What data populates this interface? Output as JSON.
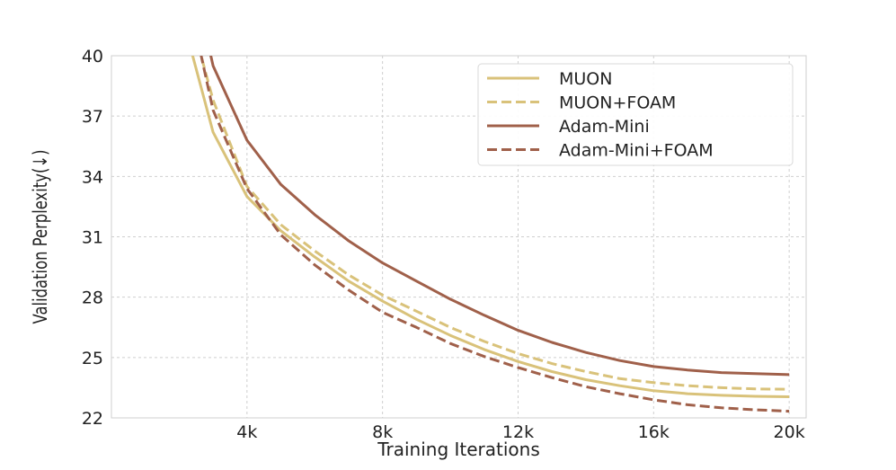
{
  "chart_data": {
    "type": "line",
    "title": "",
    "xlabel": "Training Iterations",
    "ylabel": "Validation Perplexity(↓)",
    "xlim": [
      0,
      20500
    ],
    "ylim": [
      22,
      40
    ],
    "xticks": [
      4000,
      8000,
      12000,
      16000,
      20000
    ],
    "xtick_labels": [
      "4k",
      "8k",
      "12k",
      "16k",
      "20k"
    ],
    "yticks": [
      22,
      25,
      28,
      31,
      34,
      37,
      40
    ],
    "ytick_labels": [
      "22",
      "25",
      "28",
      "31",
      "34",
      "37",
      "40"
    ],
    "grid": true,
    "legend_position": "top-right",
    "x": [
      2000,
      3000,
      4000,
      5000,
      6000,
      7000,
      8000,
      9000,
      10000,
      11000,
      12000,
      13000,
      14000,
      15000,
      16000,
      17000,
      18000,
      19000,
      20000
    ],
    "series": [
      {
        "name": "MUON",
        "color": "#D9C27A",
        "dash": "solid",
        "values": [
          42.5,
          36.2,
          33.0,
          31.3,
          30.0,
          28.8,
          27.8,
          26.9,
          26.1,
          25.4,
          24.8,
          24.3,
          23.9,
          23.6,
          23.35,
          23.2,
          23.12,
          23.07,
          23.05
        ]
      },
      {
        "name": "MUON+FOAM",
        "color": "#D9C27A",
        "dash": "dashed",
        "values": [
          44.0,
          37.8,
          33.5,
          31.6,
          30.3,
          29.1,
          28.1,
          27.3,
          26.5,
          25.8,
          25.2,
          24.7,
          24.3,
          23.95,
          23.75,
          23.6,
          23.5,
          23.44,
          23.42
        ]
      },
      {
        "name": "Adam-Mini",
        "color": "#A0604A",
        "dash": "solid",
        "values": [
          47.0,
          39.5,
          35.8,
          33.6,
          32.1,
          30.8,
          29.7,
          28.8,
          27.9,
          27.1,
          26.35,
          25.75,
          25.25,
          24.85,
          24.55,
          24.38,
          24.25,
          24.2,
          24.15
        ]
      },
      {
        "name": "Adam-Mini+FOAM",
        "color": "#A0604A",
        "dash": "dashed",
        "values": [
          45.0,
          37.3,
          33.4,
          31.1,
          29.6,
          28.35,
          27.25,
          26.5,
          25.7,
          25.05,
          24.5,
          24.0,
          23.55,
          23.2,
          22.9,
          22.65,
          22.5,
          22.4,
          22.33
        ]
      }
    ]
  }
}
